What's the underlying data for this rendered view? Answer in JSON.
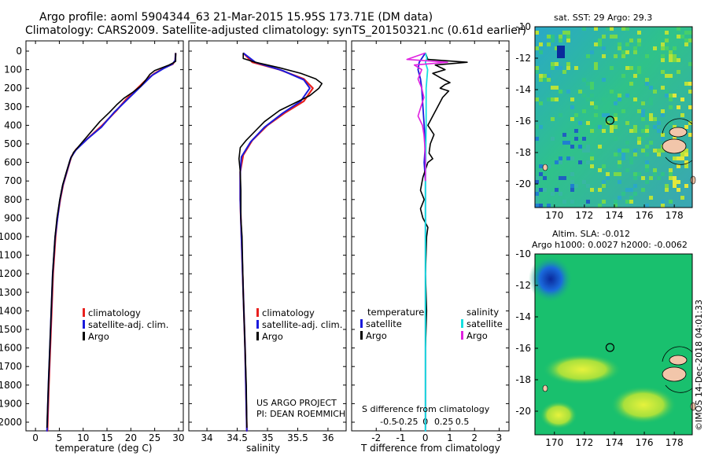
{
  "header": {
    "line1": "Argo profile: aoml 5904344_63 21-Mar-2015 15.95S 173.71E (DM data)",
    "line2": "Climatology: CARS2009. Satellite-adjusted climatology: synTS_20150321.nc (0.61d earlier)"
  },
  "depth_ticks": [
    "0",
    "100",
    "200",
    "300",
    "400",
    "500",
    "600",
    "700",
    "800",
    "900",
    "1000",
    "1100",
    "1200",
    "1300",
    "1400",
    "1500",
    "1600",
    "1700",
    "1800",
    "1900",
    "2000"
  ],
  "colors": {
    "climatology": "#e8201e",
    "satellite": "#1a1adc",
    "argo": "#000000",
    "salinity_satellite": "#15e0e0",
    "salinity_argo": "#e020e0"
  },
  "chart_data": [
    {
      "type": "line",
      "id": "temperature",
      "xlabel": "temperature (deg C)",
      "xlim": [
        -2,
        31
      ],
      "ylim": [
        2050,
        0
      ],
      "x_ticks": [
        "0",
        "5",
        "10",
        "15",
        "20",
        "25",
        "30"
      ],
      "x_tick_values": [
        0,
        5,
        10,
        15,
        20,
        25,
        30
      ],
      "legend": [
        "climatology",
        "satellite-adj. clim.",
        "Argo"
      ],
      "series": [
        {
          "name": "climatology",
          "points": [
            [
              29.4,
              10
            ],
            [
              29.3,
              50
            ],
            [
              28.8,
              70
            ],
            [
              27.0,
              90
            ],
            [
              25.0,
              120
            ],
            [
              23.0,
              160
            ],
            [
              21.0,
              210
            ],
            [
              19.0,
              260
            ],
            [
              17.0,
              320
            ],
            [
              14.0,
              400
            ],
            [
              11.0,
              470
            ],
            [
              8.5,
              530
            ],
            [
              7.5,
              570
            ],
            [
              6.6,
              650
            ],
            [
              5.8,
              720
            ],
            [
              5.2,
              800
            ],
            [
              4.6,
              900
            ],
            [
              4.2,
              1000
            ],
            [
              3.7,
              1200
            ],
            [
              3.4,
              1400
            ],
            [
              3.1,
              1600
            ],
            [
              2.8,
              1800
            ],
            [
              2.5,
              2050
            ]
          ]
        },
        {
          "name": "satellite-adj. clim.",
          "points": [
            [
              29.4,
              10
            ],
            [
              29.3,
              50
            ],
            [
              28.7,
              70
            ],
            [
              26.8,
              95
            ],
            [
              24.5,
              130
            ],
            [
              22.5,
              180
            ],
            [
              20.5,
              230
            ],
            [
              18.5,
              280
            ],
            [
              16.5,
              330
            ],
            [
              13.8,
              410
            ],
            [
              10.8,
              475
            ],
            [
              8.4,
              535
            ],
            [
              7.4,
              575
            ],
            [
              6.5,
              655
            ],
            [
              5.7,
              725
            ],
            [
              5.1,
              805
            ],
            [
              4.6,
              905
            ],
            [
              4.1,
              1005
            ],
            [
              3.6,
              1205
            ],
            [
              3.3,
              1405
            ],
            [
              3.0,
              1605
            ],
            [
              2.7,
              1805
            ],
            [
              2.4,
              2050
            ]
          ]
        },
        {
          "name": "Argo",
          "points": [
            [
              29.4,
              10
            ],
            [
              29.4,
              55
            ],
            [
              29.0,
              62
            ],
            [
              28.0,
              75
            ],
            [
              26.5,
              90
            ],
            [
              25.0,
              105
            ],
            [
              24.0,
              125
            ],
            [
              23.0,
              160
            ],
            [
              22.0,
              190
            ],
            [
              20.5,
              220
            ],
            [
              18.5,
              255
            ],
            [
              17.0,
              290
            ],
            [
              15.5,
              330
            ],
            [
              13.5,
              380
            ],
            [
              11.5,
              440
            ],
            [
              9.5,
              500
            ],
            [
              8.0,
              545
            ],
            [
              7.2,
              590
            ],
            [
              6.5,
              650
            ],
            [
              5.7,
              720
            ],
            [
              5.1,
              800
            ],
            [
              4.5,
              900
            ],
            [
              4.1,
              1000
            ],
            [
              3.6,
              1200
            ],
            [
              3.3,
              1400
            ],
            [
              3.0,
              1600
            ],
            [
              2.7,
              1800
            ],
            [
              2.4,
              2030
            ]
          ]
        }
      ]
    },
    {
      "type": "line",
      "id": "salinity",
      "xlabel": "salinity",
      "xlim": [
        33.7,
        36.3
      ],
      "ylim": [
        2050,
        0
      ],
      "x_ticks": [
        "34",
        "34.5",
        "35",
        "35.5",
        "36"
      ],
      "x_tick_values": [
        34,
        34.5,
        35,
        35.5,
        36
      ],
      "legend": [
        "climatology",
        "satellite-adj. clim.",
        "Argo"
      ],
      "annotations": [
        "US ARGO PROJECT",
        "PI: DEAN ROEMMICH"
      ],
      "series": [
        {
          "name": "climatology",
          "points": [
            [
              34.6,
              10
            ],
            [
              34.75,
              60
            ],
            [
              35.2,
              100
            ],
            [
              35.6,
              150
            ],
            [
              35.75,
              200
            ],
            [
              35.6,
              270
            ],
            [
              35.3,
              330
            ],
            [
              35.0,
              400
            ],
            [
              34.75,
              480
            ],
            [
              34.6,
              560
            ],
            [
              34.55,
              650
            ],
            [
              34.55,
              800
            ],
            [
              34.57,
              1000
            ],
            [
              34.6,
              1300
            ],
            [
              34.63,
              1600
            ],
            [
              34.66,
              2050
            ]
          ]
        },
        {
          "name": "satellite-adj. clim.",
          "points": [
            [
              34.6,
              10
            ],
            [
              34.8,
              60
            ],
            [
              35.25,
              105
            ],
            [
              35.6,
              155
            ],
            [
              35.7,
              200
            ],
            [
              35.55,
              270
            ],
            [
              35.25,
              335
            ],
            [
              34.95,
              410
            ],
            [
              34.72,
              490
            ],
            [
              34.57,
              570
            ],
            [
              34.55,
              650
            ],
            [
              34.55,
              800
            ],
            [
              34.57,
              1000
            ],
            [
              34.6,
              1300
            ],
            [
              34.63,
              1600
            ],
            [
              34.66,
              2050
            ]
          ]
        },
        {
          "name": "Argo",
          "points": [
            [
              34.6,
              10
            ],
            [
              34.6,
              40
            ],
            [
              34.8,
              60
            ],
            [
              35.2,
              90
            ],
            [
              35.55,
              120
            ],
            [
              35.8,
              150
            ],
            [
              35.9,
              175
            ],
            [
              35.85,
              200
            ],
            [
              35.7,
              240
            ],
            [
              35.45,
              280
            ],
            [
              35.2,
              320
            ],
            [
              34.95,
              380
            ],
            [
              34.8,
              430
            ],
            [
              34.65,
              480
            ],
            [
              34.55,
              520
            ],
            [
              34.53,
              580
            ],
            [
              34.55,
              650
            ],
            [
              34.56,
              750
            ],
            [
              34.56,
              900
            ],
            [
              34.58,
              1000
            ],
            [
              34.6,
              1300
            ],
            [
              34.63,
              1600
            ],
            [
              34.65,
              1800
            ],
            [
              34.66,
              2030
            ]
          ]
        }
      ]
    },
    {
      "type": "line",
      "id": "difference",
      "xlabel": "T difference from climatology",
      "xlim": [
        -3,
        3.4
      ],
      "ylim": [
        2050,
        0
      ],
      "x_ticks": [
        "-2",
        "-1",
        "0",
        "1",
        "2",
        "3"
      ],
      "x_tick_values": [
        -2,
        -1,
        0,
        1,
        2,
        3
      ],
      "s_axis_label": "S difference from climatology",
      "s_ticks": [
        "-0.5",
        "-0.25",
        "0",
        "0.25",
        "0.5"
      ],
      "s_tick_values": [
        -0.5,
        -0.25,
        0,
        0.25,
        0.5
      ],
      "s_scale": 3,
      "legend_temperature_title": "temperature",
      "legend_salinity_title": "salinity",
      "legend_temperature": [
        "satellite",
        "Argo"
      ],
      "legend_salinity": [
        "satellite",
        "Argo"
      ],
      "series": [
        {
          "name": "T satellite",
          "points": [
            [
              0.0,
              10
            ],
            [
              -0.1,
              30
            ],
            [
              -0.25,
              60
            ],
            [
              -0.3,
              100
            ],
            [
              -0.2,
              150
            ],
            [
              -0.15,
              200
            ],
            [
              -0.1,
              300
            ],
            [
              -0.05,
              400
            ],
            [
              0.0,
              500
            ],
            [
              -0.05,
              600
            ],
            [
              0.0,
              700
            ],
            [
              0.0,
              900
            ],
            [
              0.0,
              1200
            ],
            [
              0.0,
              1500
            ],
            [
              0.0,
              2050
            ]
          ]
        },
        {
          "name": "T Argo",
          "points": [
            [
              0.0,
              10
            ],
            [
              0.1,
              45
            ],
            [
              1.7,
              60
            ],
            [
              0.4,
              75
            ],
            [
              0.8,
              100
            ],
            [
              0.3,
              120
            ],
            [
              0.7,
              150
            ],
            [
              1.0,
              170
            ],
            [
              0.8,
              180
            ],
            [
              0.6,
              200
            ],
            [
              0.95,
              215
            ],
            [
              0.7,
              250
            ],
            [
              0.5,
              300
            ],
            [
              0.3,
              350
            ],
            [
              0.1,
              400
            ],
            [
              0.35,
              450
            ],
            [
              0.2,
              500
            ],
            [
              0.15,
              550
            ],
            [
              0.3,
              580
            ],
            [
              0.1,
              600
            ],
            [
              -0.1,
              680
            ],
            [
              -0.2,
              750
            ],
            [
              -0.05,
              800
            ],
            [
              -0.2,
              850
            ],
            [
              -0.1,
              900
            ],
            [
              0.1,
              950
            ],
            [
              0.05,
              1000
            ],
            [
              0.0,
              1200
            ],
            [
              0.05,
              1400
            ],
            [
              0.0,
              1600
            ],
            [
              0.0,
              2030
            ]
          ]
        },
        {
          "name": "S satellite",
          "points": [
            [
              0.0,
              10
            ],
            [
              0.02,
              40
            ],
            [
              0.0,
              60
            ],
            [
              0.03,
              100
            ],
            [
              0.01,
              200
            ],
            [
              0.01,
              400
            ],
            [
              0.0,
              700
            ],
            [
              0.0,
              1000
            ],
            [
              0.0,
              1500
            ],
            [
              0.0,
              2050
            ]
          ]
        },
        {
          "name": "S Argo",
          "points": [
            [
              0.0,
              10
            ],
            [
              -0.25,
              45
            ],
            [
              0.3,
              60
            ],
            [
              -0.15,
              75
            ],
            [
              -0.05,
              100
            ],
            [
              -0.1,
              150
            ],
            [
              -0.05,
              200
            ],
            [
              -0.02,
              250
            ],
            [
              -0.06,
              300
            ],
            [
              -0.1,
              350
            ],
            [
              -0.04,
              400
            ],
            [
              -0.02,
              450
            ],
            [
              -0.01,
              500
            ],
            [
              0.0,
              600
            ],
            [
              0.0,
              700
            ]
          ]
        }
      ]
    }
  ],
  "maps": {
    "sst": {
      "title": "sat. SST: 29 Argo: 29.3",
      "lat_ticks": [
        "-10",
        "-12",
        "-14",
        "-16",
        "-18",
        "-20"
      ],
      "lon_ticks": [
        "170",
        "172",
        "174",
        "176",
        "178"
      ]
    },
    "sla": {
      "title_line1": "Altim. SLA: -0.012",
      "title_line2": "Argo h1000: 0.0027 h2000: -0.0062",
      "lat_ticks": [
        "-10",
        "-12",
        "-14",
        "-16",
        "-18",
        "-20"
      ],
      "lon_ticks": [
        "170",
        "172",
        "174",
        "176",
        "178"
      ]
    },
    "float_position": {
      "lat": -15.95,
      "lon": 173.71
    }
  },
  "credit": "©IMOS 14-Dec-2018 04:01:33"
}
